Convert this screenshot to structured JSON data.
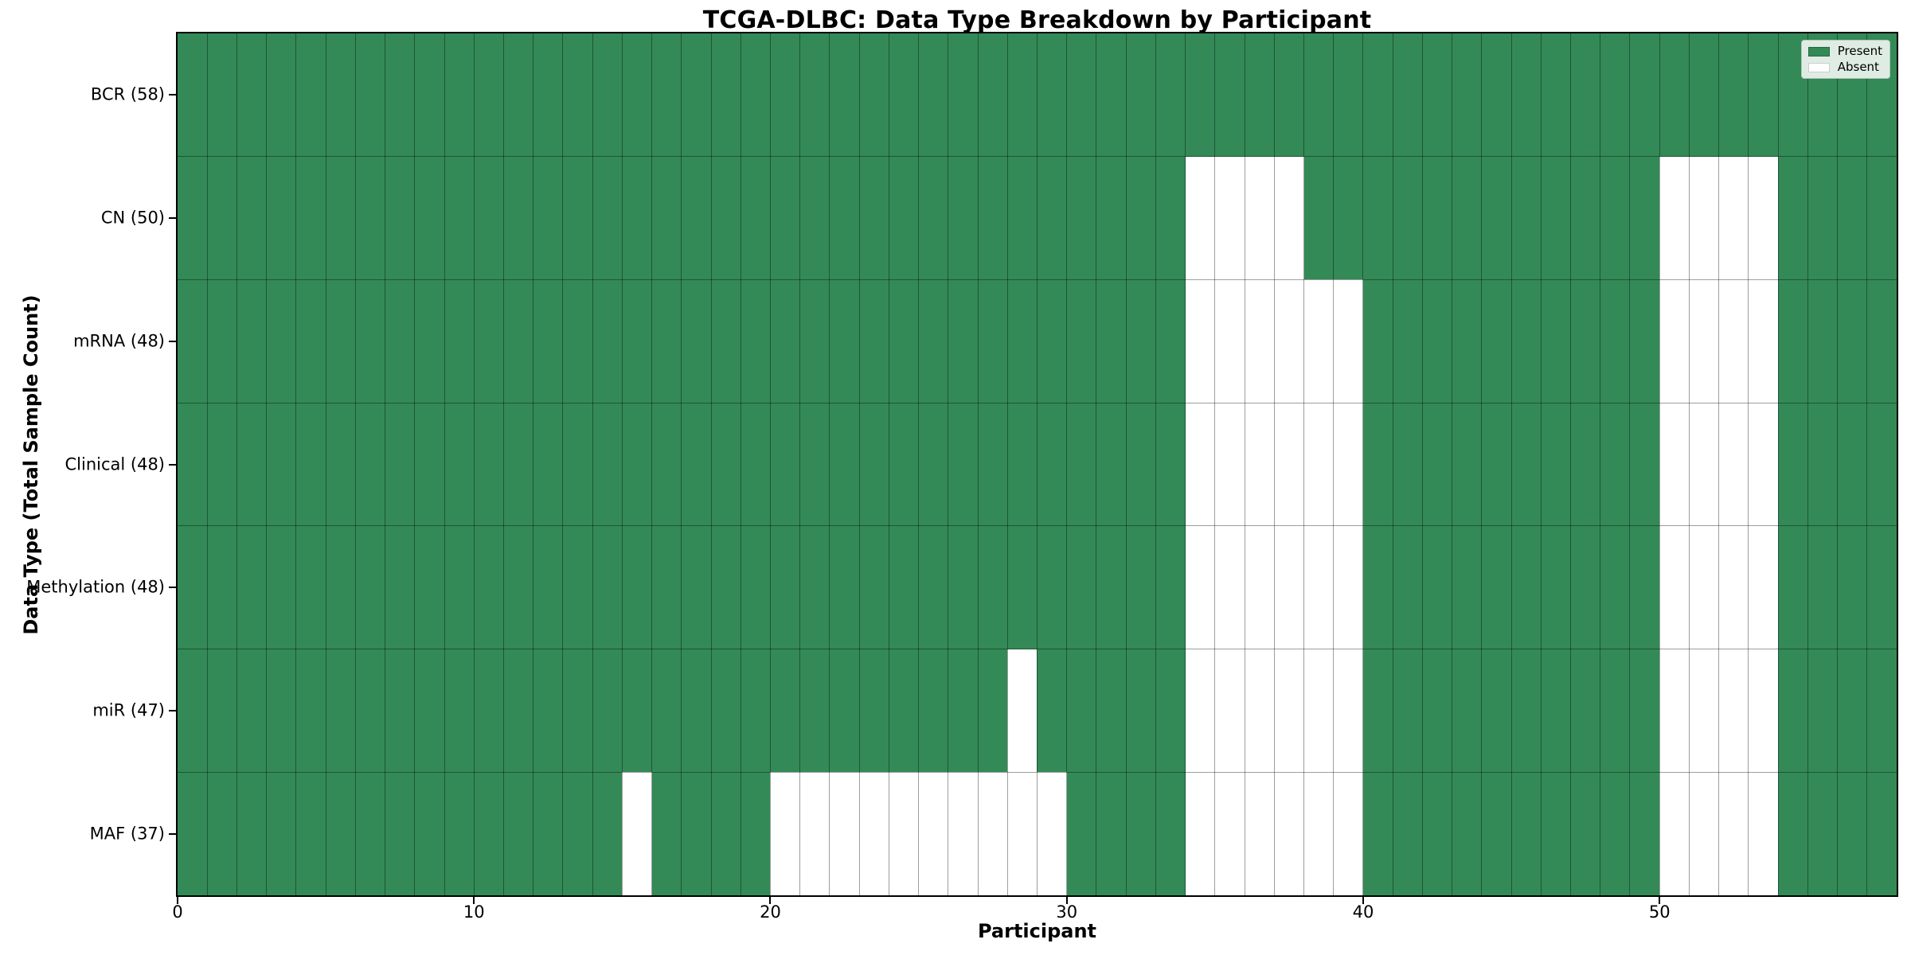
{
  "title": "TCGA-DLBC: Data Type Breakdown by Participant",
  "axes": {
    "xlabel": "Participant",
    "ylabel": "Data Type (Total Sample Count)"
  },
  "legend": {
    "present": "Present",
    "absent": "Absent"
  },
  "chart_data": {
    "type": "heatmap",
    "title": "TCGA-DLBC: Data Type Breakdown by Participant",
    "xlabel": "Participant",
    "ylabel": "Data Type (Total Sample Count)",
    "n_participants": 58,
    "x_range": [
      0,
      58
    ],
    "x_ticks": [
      0,
      10,
      20,
      30,
      40,
      50
    ],
    "grid": true,
    "legend_entries": [
      "Present",
      "Absent"
    ],
    "legend_position": "upper right",
    "present_color": "#338a57",
    "absent_color": "#ffffff",
    "rows": [
      {
        "label": "BCR (58)",
        "data_type": "BCR",
        "total_samples": 58,
        "absent_participants": []
      },
      {
        "label": "CN (50)",
        "data_type": "CN",
        "total_samples": 50,
        "absent_participants": [
          34,
          35,
          36,
          37,
          50,
          51,
          52,
          53
        ]
      },
      {
        "label": "mRNA (48)",
        "data_type": "mRNA",
        "total_samples": 48,
        "absent_participants": [
          34,
          35,
          36,
          37,
          38,
          39,
          50,
          51,
          52,
          53
        ]
      },
      {
        "label": "Clinical (48)",
        "data_type": "Clinical",
        "total_samples": 48,
        "absent_participants": [
          34,
          35,
          36,
          37,
          38,
          39,
          50,
          51,
          52,
          53
        ]
      },
      {
        "label": "Methylation (48)",
        "data_type": "Methylation",
        "total_samples": 48,
        "absent_participants": [
          34,
          35,
          36,
          37,
          38,
          39,
          50,
          51,
          52,
          53
        ]
      },
      {
        "label": "miR (47)",
        "data_type": "miR",
        "total_samples": 47,
        "absent_participants": [
          28,
          34,
          35,
          36,
          37,
          38,
          39,
          50,
          51,
          52,
          53
        ]
      },
      {
        "label": "MAF (37)",
        "data_type": "MAF",
        "total_samples": 37,
        "absent_participants": [
          15,
          20,
          21,
          22,
          23,
          24,
          25,
          26,
          27,
          28,
          29,
          34,
          35,
          36,
          37,
          38,
          39,
          50,
          51,
          52,
          53
        ]
      }
    ]
  }
}
